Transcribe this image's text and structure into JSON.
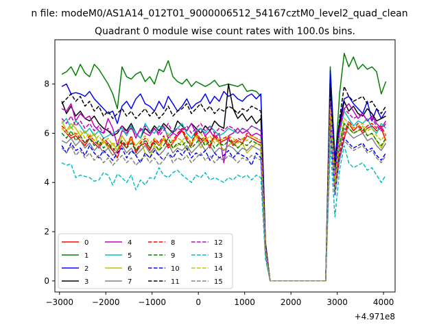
{
  "chart_data": {
    "type": "line",
    "suptitle": "n file: modeM0/AS1A14_012T01_9000006512_54167cztM0_level2_quad_clean",
    "title": "Quadrant 0 module wise count rates with 100.0s bins.",
    "xlabel": "",
    "ylabel": "",
    "x_offset_label": "+4.971e8",
    "xlim": [
      -3100,
      4250
    ],
    "ylim": [
      -0.45,
      9.8
    ],
    "xticks": [
      -3000,
      -2000,
      -1000,
      0,
      1000,
      2000,
      3000,
      4000
    ],
    "xtick_labels": [
      "−3000",
      "−2000",
      "−1000",
      "0",
      "1000",
      "2000",
      "3000",
      "4000"
    ],
    "yticks": [
      0,
      2,
      4,
      6,
      8
    ],
    "ytick_labels": [
      "0",
      "2",
      "4",
      "6",
      "8"
    ],
    "grid": false,
    "legend": {
      "placement": "lower-left",
      "columns": 4
    },
    "x_start": -2950,
    "x_step": 100,
    "series": [
      {
        "name": "0",
        "color": "#ff0000",
        "dash": "solid",
        "values": [
          6.2,
          6.0,
          5.8,
          5.9,
          5.7,
          5.5,
          5.8,
          5.6,
          5.4,
          5.7,
          5.5,
          5.3,
          5.0,
          5.6,
          5.4,
          5.8,
          5.2,
          5.5,
          5.6,
          5.3,
          5.7,
          5.5,
          5.8,
          5.4,
          5.6,
          5.9,
          6.1,
          5.7,
          5.5,
          6.0,
          5.6,
          5.8,
          5.4,
          5.9,
          5.6,
          5.7,
          5.8,
          5.5,
          5.7,
          5.6,
          5.9,
          5.8,
          5.7,
          5.6,
          1.3,
          0,
          0,
          0,
          0,
          0,
          0,
          0,
          0,
          0,
          0,
          0,
          0,
          0,
          6.5,
          3.8,
          5.0,
          5.8,
          6.4,
          6.1,
          6.3,
          6.0,
          6.2,
          6.3,
          6.1,
          6.2,
          5.7
        ]
      },
      {
        "name": "1",
        "color": "#008000",
        "dash": "solid",
        "values": [
          8.4,
          8.5,
          8.7,
          8.35,
          8.8,
          8.45,
          8.3,
          8.8,
          8.6,
          8.3,
          8.0,
          7.6,
          7.0,
          8.7,
          8.3,
          8.2,
          8.4,
          8.5,
          8.1,
          8.3,
          8.0,
          8.6,
          8.5,
          8.95,
          8.3,
          8.1,
          8.0,
          8.2,
          7.9,
          8.1,
          8.0,
          7.9,
          8.0,
          8.15,
          7.9,
          7.95,
          8.0,
          7.95,
          7.9,
          8.0,
          7.7,
          7.75,
          7.7,
          7.5,
          1.6,
          0,
          0,
          0,
          0,
          0,
          0,
          0,
          0,
          0,
          0,
          0,
          0,
          0,
          8.7,
          4.6,
          7.6,
          9.25,
          8.7,
          9.1,
          8.6,
          8.8,
          8.6,
          8.7,
          8.5,
          7.6,
          8.1
        ]
      },
      {
        "name": "2",
        "color": "#0000ff",
        "dash": "solid",
        "values": [
          7.9,
          8.0,
          7.6,
          7.65,
          7.6,
          7.5,
          7.7,
          7.4,
          7.2,
          7.0,
          6.8,
          6.9,
          6.4,
          7.1,
          7.3,
          7.0,
          7.4,
          7.6,
          7.2,
          7.1,
          6.9,
          7.3,
          7.0,
          7.5,
          7.2,
          6.9,
          7.1,
          7.4,
          7.0,
          7.2,
          7.3,
          7.6,
          7.2,
          7.5,
          7.3,
          7.7,
          7.5,
          7.6,
          7.4,
          7.3,
          7.5,
          7.6,
          7.4,
          7.6,
          1.5,
          0,
          0,
          0,
          0,
          0,
          0,
          0,
          0,
          0,
          0,
          0,
          0,
          0,
          8.55,
          5.0,
          6.5,
          7.4,
          7.5,
          7.2,
          7.0,
          6.8,
          7.3,
          6.5,
          7.0,
          6.6,
          6.9
        ]
      },
      {
        "name": "3",
        "color": "#000000",
        "dash": "solid",
        "values": [
          7.3,
          6.8,
          7.1,
          6.7,
          6.9,
          6.6,
          6.5,
          6.7,
          6.4,
          6.2,
          6.1,
          5.9,
          6.0,
          6.3,
          6.1,
          6.4,
          6.0,
          5.8,
          6.2,
          6.0,
          6.3,
          6.1,
          6.4,
          6.2,
          6.0,
          6.5,
          6.3,
          6.1,
          6.4,
          6.2,
          6.0,
          6.3,
          6.1,
          6.5,
          6.3,
          6.2,
          8.0,
          7.0,
          6.6,
          6.8,
          6.5,
          6.7,
          6.4,
          6.6,
          1.4,
          0,
          0,
          0,
          0,
          0,
          0,
          0,
          0,
          0,
          0,
          0,
          0,
          0,
          8.0,
          4.5,
          6.3,
          7.3,
          6.9,
          7.1,
          6.8,
          6.7,
          7.0,
          6.8,
          6.5,
          6.6,
          6.7
        ]
      },
      {
        "name": "4",
        "color": "#bf00bf",
        "dash": "solid",
        "values": [
          7.0,
          6.9,
          7.2,
          6.5,
          6.8,
          6.6,
          6.7,
          6.3,
          6.1,
          6.0,
          6.6,
          6.2,
          5.5,
          6.1,
          6.0,
          6.3,
          5.8,
          6.2,
          6.0,
          5.9,
          6.2,
          6.0,
          6.3,
          5.8,
          6.0,
          5.9,
          6.2,
          6.1,
          6.4,
          6.0,
          6.2,
          5.9,
          6.1,
          5.8,
          6.0,
          4.8,
          5.9,
          6.0,
          6.2,
          6.0,
          6.1,
          5.9,
          6.0,
          5.9,
          1.3,
          0,
          0,
          0,
          0,
          0,
          0,
          0,
          0,
          0,
          0,
          0,
          0,
          0,
          7.2,
          4.5,
          6.2,
          7.0,
          7.2,
          6.9,
          6.6,
          6.8,
          6.5,
          6.7,
          6.4,
          6.2,
          6.5
        ]
      },
      {
        "name": "5",
        "color": "#00bfbf",
        "dash": "solid",
        "values": [
          6.4,
          6.6,
          6.2,
          6.5,
          6.3,
          6.0,
          6.2,
          5.9,
          6.1,
          5.8,
          5.9,
          6.0,
          6.1,
          6.2,
          5.9,
          6.3,
          6.0,
          5.8,
          6.4,
          6.1,
          6.0,
          6.3,
          6.2,
          5.9,
          6.1,
          6.2,
          6.4,
          6.0,
          5.8,
          6.1,
          6.2,
          6.0,
          6.3,
          6.1,
          5.9,
          6.0,
          6.2,
          6.1,
          6.0,
          6.2,
          6.1,
          6.3,
          6.2,
          6.1,
          1.3,
          0,
          0,
          0,
          0,
          0,
          0,
          0,
          0,
          0,
          0,
          0,
          0,
          0,
          7.5,
          4.4,
          6.0,
          6.9,
          6.6,
          6.3,
          6.5,
          6.4,
          6.6,
          6.2,
          6.0,
          6.4,
          6.2
        ]
      },
      {
        "name": "6",
        "color": "#bfbf00",
        "dash": "solid",
        "values": [
          6.5,
          6.1,
          6.4,
          6.2,
          5.9,
          6.1,
          5.8,
          6.0,
          5.5,
          5.7,
          5.4,
          5.6,
          5.3,
          5.9,
          5.6,
          5.8,
          5.5,
          5.7,
          5.2,
          5.0,
          5.5,
          5.3,
          5.8,
          5.6,
          5.4,
          5.5,
          5.7,
          5.3,
          5.6,
          5.9,
          5.4,
          5.7,
          5.5,
          5.8,
          5.6,
          5.3,
          5.5,
          5.7,
          5.4,
          5.6,
          5.2,
          5.4,
          5.6,
          5.5,
          1.2,
          0,
          0,
          0,
          0,
          0,
          0,
          0,
          0,
          0,
          0,
          0,
          0,
          0,
          7.0,
          3.8,
          5.4,
          6.4,
          6.2,
          6.0,
          6.1,
          6.3,
          5.9,
          6.0,
          5.7,
          5.4,
          5.8
        ]
      },
      {
        "name": "7",
        "color": "#808080",
        "dash": "solid",
        "values": [
          5.7,
          5.6,
          5.8,
          5.5,
          5.7,
          5.4,
          5.6,
          5.3,
          5.5,
          5.2,
          5.4,
          5.1,
          5.3,
          5.5,
          5.2,
          5.4,
          5.1,
          5.3,
          5.5,
          5.2,
          5.4,
          5.1,
          5.3,
          5.6,
          5.2,
          5.4,
          5.3,
          5.5,
          5.2,
          5.4,
          5.6,
          5.3,
          5.5,
          5.2,
          5.4,
          5.3,
          5.5,
          5.4,
          5.2,
          5.4,
          5.3,
          5.5,
          5.4,
          5.3,
          1.2,
          0,
          0,
          0,
          0,
          0,
          0,
          0,
          0,
          0,
          0,
          0,
          0,
          0,
          6.8,
          4.0,
          5.4,
          6.2,
          6.0,
          5.8,
          5.9,
          6.0,
          5.7,
          5.8,
          5.5,
          5.3,
          5.6
        ]
      },
      {
        "name": "8",
        "color": "#ff0000",
        "dash": "dashed",
        "values": [
          6.3,
          6.1,
          5.9,
          6.0,
          5.8,
          5.6,
          5.9,
          5.7,
          5.5,
          5.8,
          5.6,
          5.4,
          5.2,
          5.7,
          5.5,
          5.9,
          5.3,
          5.6,
          5.8,
          5.4,
          5.8,
          5.6,
          5.9,
          5.5,
          5.7,
          6.0,
          6.2,
          5.8,
          5.6,
          6.1,
          5.7,
          5.9,
          5.5,
          6.0,
          5.7,
          5.8,
          5.9,
          5.6,
          5.8,
          5.7,
          6.0,
          5.9,
          5.8,
          5.7,
          1.3,
          0,
          0,
          0,
          0,
          0,
          0,
          0,
          0,
          0,
          0,
          0,
          0,
          0,
          6.7,
          3.9,
          5.2,
          6.0,
          6.5,
          6.2,
          6.4,
          6.1,
          6.3,
          6.4,
          6.2,
          6.3,
          5.9
        ]
      },
      {
        "name": "9",
        "color": "#008000",
        "dash": "dashed",
        "values": [
          6.0,
          5.8,
          6.1,
          5.7,
          5.9,
          5.6,
          5.8,
          5.5,
          5.7,
          5.4,
          5.6,
          5.3,
          5.5,
          5.7,
          5.4,
          5.6,
          5.3,
          5.5,
          5.7,
          5.4,
          5.6,
          5.3,
          5.5,
          5.8,
          5.4,
          5.6,
          5.5,
          5.7,
          5.4,
          5.6,
          5.8,
          5.5,
          5.7,
          5.4,
          5.6,
          5.5,
          5.7,
          5.6,
          5.4,
          5.6,
          5.5,
          5.7,
          5.6,
          5.5,
          1.3,
          0,
          0,
          0,
          0,
          0,
          0,
          0,
          0,
          0,
          0,
          0,
          0,
          0,
          6.9,
          4.1,
          5.6,
          6.4,
          6.2,
          6.0,
          6.1,
          6.2,
          5.9,
          6.0,
          5.7,
          5.5,
          5.8
        ]
      },
      {
        "name": "10",
        "color": "#0000ff",
        "dash": "dashed",
        "values": [
          5.5,
          5.2,
          5.6,
          5.3,
          5.4,
          5.1,
          5.5,
          5.2,
          5.0,
          5.3,
          5.1,
          4.9,
          5.2,
          5.4,
          5.0,
          5.3,
          5.1,
          4.8,
          5.2,
          5.0,
          5.3,
          5.1,
          4.9,
          5.2,
          5.0,
          5.3,
          5.1,
          5.4,
          5.0,
          5.2,
          5.1,
          5.3,
          4.9,
          5.2,
          5.0,
          5.1,
          5.3,
          5.0,
          5.2,
          5.1,
          5.0,
          4.7,
          5.2,
          5.0,
          1.1,
          0,
          0,
          0,
          0,
          0,
          0,
          0,
          0,
          0,
          0,
          0,
          0,
          0,
          6.2,
          3.5,
          5.0,
          5.8,
          5.6,
          5.4,
          5.5,
          5.6,
          5.3,
          5.4,
          5.1,
          4.9,
          5.2
        ]
      },
      {
        "name": "11",
        "color": "#000000",
        "dash": "dashed",
        "values": [
          7.2,
          7.4,
          7.6,
          7.3,
          7.5,
          7.1,
          7.3,
          6.9,
          7.1,
          6.7,
          6.9,
          6.6,
          6.8,
          7.0,
          6.7,
          6.9,
          6.6,
          6.8,
          7.0,
          6.7,
          6.9,
          6.6,
          6.8,
          7.1,
          6.7,
          6.9,
          7.0,
          7.2,
          6.8,
          7.0,
          7.2,
          6.9,
          7.1,
          6.8,
          7.0,
          6.9,
          7.1,
          7.0,
          6.8,
          7.0,
          6.9,
          7.1,
          7.0,
          6.9,
          1.5,
          0,
          0,
          0,
          0,
          0,
          0,
          0,
          0,
          0,
          0,
          0,
          0,
          0,
          7.8,
          4.6,
          6.6,
          7.9,
          7.5,
          7.3,
          7.4,
          7.5,
          7.2,
          7.3,
          7.0,
          6.8,
          7.1
        ]
      },
      {
        "name": "12",
        "color": "#bf00bf",
        "dash": "dashed",
        "values": [
          6.6,
          6.4,
          6.7,
          6.3,
          6.5,
          6.2,
          6.4,
          6.1,
          6.3,
          6.0,
          6.2,
          5.9,
          6.1,
          6.3,
          6.0,
          6.2,
          5.9,
          6.1,
          6.3,
          6.0,
          6.2,
          5.9,
          6.1,
          6.4,
          6.0,
          6.2,
          6.1,
          6.3,
          6.0,
          6.2,
          6.4,
          6.1,
          6.3,
          6.0,
          6.2,
          6.1,
          6.3,
          6.2,
          6.0,
          6.2,
          6.1,
          6.3,
          6.2,
          6.1,
          1.4,
          0,
          0,
          0,
          0,
          0,
          0,
          0,
          0,
          0,
          0,
          0,
          0,
          0,
          7.3,
          4.3,
          6.1,
          7.0,
          6.8,
          6.6,
          6.7,
          6.8,
          6.5,
          6.6,
          6.3,
          6.1,
          6.4
        ]
      },
      {
        "name": "13",
        "color": "#00bfbf",
        "dash": "dashed",
        "values": [
          4.8,
          4.7,
          4.75,
          4.2,
          4.3,
          4.25,
          4.2,
          4.05,
          4.1,
          4.4,
          4.3,
          3.9,
          4.35,
          4.2,
          4.0,
          4.3,
          3.7,
          4.1,
          3.9,
          4.2,
          4.15,
          4.6,
          4.3,
          4.2,
          4.4,
          4.5,
          4.3,
          4.15,
          4.0,
          4.3,
          4.2,
          4.4,
          4.1,
          4.2,
          4.1,
          4.0,
          4.2,
          4.1,
          4.3,
          4.2,
          4.3,
          4.1,
          4.3,
          4.2,
          0.9,
          0,
          0,
          0,
          0,
          0,
          0,
          0,
          0,
          0,
          0,
          0,
          0,
          0,
          5.5,
          2.6,
          4.5,
          5.5,
          4.8,
          4.6,
          4.7,
          4.8,
          4.5,
          4.6,
          4.3,
          4.0,
          4.3
        ]
      },
      {
        "name": "14",
        "color": "#bfbf00",
        "dash": "dashed",
        "values": [
          6.2,
          6.0,
          6.3,
          5.9,
          6.1,
          5.8,
          6.0,
          5.7,
          5.9,
          5.6,
          5.8,
          5.5,
          5.7,
          5.9,
          5.6,
          5.8,
          5.5,
          5.7,
          5.9,
          5.6,
          5.8,
          5.5,
          5.7,
          6.0,
          5.6,
          5.8,
          5.7,
          5.9,
          5.6,
          5.8,
          6.0,
          5.7,
          5.9,
          5.6,
          5.8,
          5.7,
          5.9,
          5.8,
          5.6,
          5.8,
          5.7,
          5.9,
          5.8,
          5.7,
          1.3,
          0,
          0,
          0,
          0,
          0,
          0,
          0,
          0,
          0,
          0,
          0,
          0,
          0,
          7.0,
          4.0,
          5.7,
          6.6,
          6.4,
          6.2,
          6.3,
          6.4,
          6.1,
          6.2,
          5.9,
          5.7,
          6.0
        ]
      },
      {
        "name": "15",
        "color": "#808080",
        "dash": "dashed",
        "values": [
          5.4,
          5.2,
          5.5,
          5.1,
          5.3,
          5.0,
          5.2,
          4.9,
          5.1,
          4.8,
          5.0,
          4.7,
          4.9,
          5.1,
          4.8,
          5.0,
          4.7,
          4.9,
          5.1,
          4.8,
          5.0,
          4.7,
          4.9,
          5.2,
          4.8,
          5.0,
          4.9,
          5.1,
          4.8,
          5.0,
          5.2,
          4.9,
          5.1,
          4.8,
          5.0,
          4.9,
          5.1,
          5.0,
          4.8,
          5.0,
          4.9,
          5.1,
          5.0,
          4.9,
          1.1,
          0,
          0,
          0,
          0,
          0,
          0,
          0,
          0,
          0,
          0,
          0,
          0,
          0,
          6.3,
          3.6,
          4.9,
          5.7,
          5.5,
          5.3,
          5.4,
          5.5,
          5.2,
          5.3,
          5.0,
          4.8,
          5.1
        ]
      }
    ]
  }
}
